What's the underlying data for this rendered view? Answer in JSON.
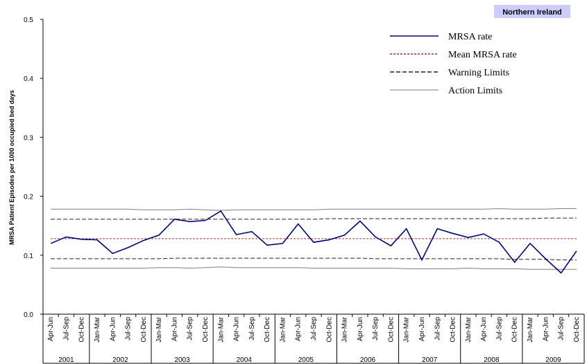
{
  "chart_data": {
    "type": "line",
    "title": "Northern Ireland",
    "ylabel": "MRSA Patient Episodes per 1000 occupied bed days",
    "xlabel": "",
    "ylim": [
      0,
      0.5
    ],
    "yticks": [
      "0.0",
      "0.1",
      "0.2",
      "0.3",
      "0.4",
      "0.5"
    ],
    "grid": false,
    "legend_position": "top-right",
    "categories": [
      "Apr-Jun",
      "Jul-Sep",
      "Oct-Dec",
      "Jan-Mar",
      "Apr-Jun",
      "Jul-Sep",
      "Oct-Dec",
      "Jan-Mar",
      "Apr-Jun",
      "Jul-Sep",
      "Oct-Dec",
      "Jan-Mar",
      "Apr-Jun",
      "Jul-Sep",
      "Oct-Dec",
      "Jan-Mar",
      "Apr-Jun",
      "Jul-Sep",
      "Oct-Dec",
      "Jan-Mar",
      "Apr-Jun",
      "Jul-Sep",
      "Oct-Dec",
      "Jan-Mar",
      "Apr-Jun",
      "Jul-Sep",
      "Oct-Dec",
      "Jan-Mar",
      "Apr-Jun",
      "Jul-Sep",
      "Oct-Dec",
      "Jan-Mar",
      "Apr-Jun",
      "Jul-Sep",
      "Oct-Dec"
    ],
    "year_groups": [
      {
        "label": "2001",
        "count": 3
      },
      {
        "label": "2002",
        "count": 4
      },
      {
        "label": "2003",
        "count": 4
      },
      {
        "label": "2004",
        "count": 4
      },
      {
        "label": "2005",
        "count": 4
      },
      {
        "label": "2006",
        "count": 4
      },
      {
        "label": "2007",
        "count": 4
      },
      {
        "label": "2008",
        "count": 4
      },
      {
        "label": "2009",
        "count": 4
      }
    ],
    "series": [
      {
        "name": "MRSA rate",
        "color": "#000080",
        "style": "solid",
        "values": [
          0.12,
          0.131,
          0.127,
          0.126,
          0.103,
          0.113,
          0.125,
          0.134,
          0.161,
          0.157,
          0.159,
          0.175,
          0.135,
          0.14,
          0.117,
          0.12,
          0.153,
          0.122,
          0.126,
          0.134,
          0.158,
          0.131,
          0.116,
          0.145,
          0.092,
          0.145,
          0.137,
          0.13,
          0.136,
          0.122,
          0.088,
          0.12,
          0.094,
          0.07,
          0.107
        ]
      },
      {
        "name": "Mean MRSA rate",
        "color": "#993333",
        "style": "dashed",
        "values": [
          0.128,
          0.128,
          0.128,
          0.128,
          0.128,
          0.128,
          0.128,
          0.128,
          0.128,
          0.128,
          0.128,
          0.128,
          0.128,
          0.128,
          0.128,
          0.128,
          0.128,
          0.128,
          0.128,
          0.128,
          0.128,
          0.128,
          0.128,
          0.128,
          0.128,
          0.128,
          0.128,
          0.128,
          0.128,
          0.128,
          0.128,
          0.128,
          0.128,
          0.128,
          0.128
        ]
      },
      {
        "name": "Warning Limits",
        "color": "#222222",
        "style": "dashed",
        "group": "upper",
        "values": [
          0.161,
          0.161,
          0.161,
          0.161,
          0.161,
          0.161,
          0.161,
          0.161,
          0.161,
          0.161,
          0.161,
          0.161,
          0.161,
          0.161,
          0.161,
          0.161,
          0.161,
          0.161,
          0.162,
          0.162,
          0.162,
          0.162,
          0.162,
          0.162,
          0.162,
          0.162,
          0.162,
          0.162,
          0.162,
          0.162,
          0.162,
          0.162,
          0.163,
          0.163,
          0.163
        ]
      },
      {
        "name": "Warning Limits",
        "color": "#222222",
        "style": "dashed",
        "group": "lower",
        "values": [
          0.094,
          0.094,
          0.094,
          0.094,
          0.094,
          0.094,
          0.094,
          0.094,
          0.095,
          0.095,
          0.095,
          0.095,
          0.095,
          0.095,
          0.095,
          0.095,
          0.095,
          0.095,
          0.095,
          0.095,
          0.095,
          0.094,
          0.094,
          0.094,
          0.094,
          0.094,
          0.094,
          0.094,
          0.094,
          0.094,
          0.093,
          0.093,
          0.093,
          0.092,
          0.092
        ]
      },
      {
        "name": "Action Limits",
        "color": "#7f7f7f",
        "style": "solid",
        "group": "upper",
        "values": [
          0.178,
          0.178,
          0.178,
          0.178,
          0.178,
          0.178,
          0.177,
          0.177,
          0.177,
          0.178,
          0.177,
          0.176,
          0.177,
          0.177,
          0.177,
          0.177,
          0.177,
          0.177,
          0.178,
          0.178,
          0.178,
          0.178,
          0.178,
          0.178,
          0.178,
          0.178,
          0.178,
          0.178,
          0.178,
          0.179,
          0.178,
          0.178,
          0.178,
          0.179,
          0.179
        ]
      },
      {
        "name": "Action Limits",
        "color": "#7f7f7f",
        "style": "solid",
        "group": "lower",
        "values": [
          0.078,
          0.078,
          0.078,
          0.078,
          0.078,
          0.078,
          0.078,
          0.079,
          0.079,
          0.078,
          0.079,
          0.08,
          0.079,
          0.079,
          0.079,
          0.079,
          0.079,
          0.078,
          0.078,
          0.078,
          0.078,
          0.078,
          0.078,
          0.077,
          0.077,
          0.077,
          0.077,
          0.078,
          0.077,
          0.077,
          0.077,
          0.076,
          0.076,
          0.076,
          0.076
        ]
      }
    ],
    "legend": [
      {
        "label": "MRSA rate",
        "color": "#000080",
        "style": "solid"
      },
      {
        "label": "Mean MRSA rate",
        "color": "#993333",
        "style": "dashed"
      },
      {
        "label": "Warning Limits",
        "color": "#222222",
        "style": "dashed"
      },
      {
        "label": "Action Limits",
        "color": "#7f7f7f",
        "style": "solid"
      }
    ],
    "badge_color": "#ccccff"
  }
}
